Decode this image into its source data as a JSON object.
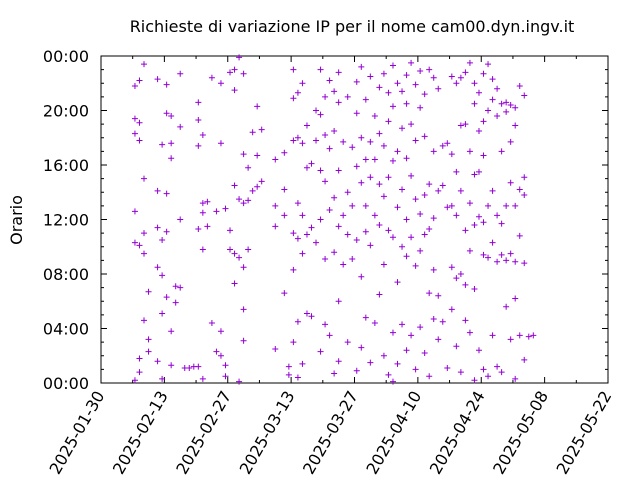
{
  "chart_data": {
    "type": "scatter",
    "title": "Richieste di variazione IP per il nome cam00.dyn.ingv.it",
    "xlabel": "",
    "ylabel": "Orario",
    "x_axis": {
      "type": "date",
      "range": [
        "2025-01-30",
        "2025-05-22"
      ],
      "tick_labels": [
        "2025-01-30",
        "2025-02-13",
        "2025-02-27",
        "2025-03-13",
        "2025-03-27",
        "2025-04-10",
        "2025-04-24",
        "2025-05-08",
        "2025-05-22"
      ]
    },
    "y_axis": {
      "unit": "hours",
      "range": [
        0,
        24
      ],
      "tick_labels": [
        "00:00",
        "04:00",
        "08:00",
        "12:00",
        "16:00",
        "20:00",
        "00:00"
      ],
      "tick_values": [
        0,
        4,
        8,
        12,
        16,
        20,
        24
      ]
    },
    "marker": "+",
    "color": "#9400d3",
    "grid": false,
    "points": [
      [
        "2025-02-06",
        21.8
      ],
      [
        "2025-02-06",
        19.4
      ],
      [
        "2025-02-06",
        18.3
      ],
      [
        "2025-02-06",
        12.6
      ],
      [
        "2025-02-06",
        10.3
      ],
      [
        "2025-02-06",
        0.2
      ],
      [
        "2025-02-07",
        22.2
      ],
      [
        "2025-02-07",
        19.1
      ],
      [
        "2025-02-07",
        17.8
      ],
      [
        "2025-02-07",
        10.1
      ],
      [
        "2025-02-07",
        1.8
      ],
      [
        "2025-02-07",
        0.8
      ],
      [
        "2025-02-08",
        23.4
      ],
      [
        "2025-02-08",
        15.0
      ],
      [
        "2025-02-08",
        11.0
      ],
      [
        "2025-02-08",
        9.5
      ],
      [
        "2025-02-08",
        4.6
      ],
      [
        "2025-02-09",
        6.7
      ],
      [
        "2025-02-09",
        3.2
      ],
      [
        "2025-02-09",
        2.3
      ],
      [
        "2025-02-11",
        22.3
      ],
      [
        "2025-02-11",
        14.1
      ],
      [
        "2025-02-11",
        11.4
      ],
      [
        "2025-02-11",
        8.5
      ],
      [
        "2025-02-11",
        1.6
      ],
      [
        "2025-02-12",
        17.5
      ],
      [
        "2025-02-12",
        10.5
      ],
      [
        "2025-02-12",
        7.9
      ],
      [
        "2025-02-12",
        5.1
      ],
      [
        "2025-02-12",
        0.3
      ],
      [
        "2025-02-13",
        21.9
      ],
      [
        "2025-02-13",
        19.8
      ],
      [
        "2025-02-13",
        13.9
      ],
      [
        "2025-02-13",
        11.1
      ],
      [
        "2025-02-13",
        6.3
      ],
      [
        "2025-02-14",
        19.6
      ],
      [
        "2025-02-14",
        17.6
      ],
      [
        "2025-02-14",
        16.5
      ],
      [
        "2025-02-14",
        3.8
      ],
      [
        "2025-02-14",
        1.3
      ],
      [
        "2025-02-15",
        7.1
      ],
      [
        "2025-02-15",
        5.9
      ],
      [
        "2025-02-16",
        22.7
      ],
      [
        "2025-02-16",
        18.8
      ],
      [
        "2025-02-16",
        12.0
      ],
      [
        "2025-02-16",
        7.0
      ],
      [
        "2025-02-17",
        1.1
      ],
      [
        "2025-02-18",
        1.1
      ],
      [
        "2025-02-19",
        1.2
      ],
      [
        "2025-02-20",
        20.6
      ],
      [
        "2025-02-20",
        19.3
      ],
      [
        "2025-02-20",
        17.4
      ],
      [
        "2025-02-20",
        11.3
      ],
      [
        "2025-02-20",
        1.2
      ],
      [
        "2025-02-21",
        18.2
      ],
      [
        "2025-02-21",
        13.2
      ],
      [
        "2025-02-21",
        12.5
      ],
      [
        "2025-02-21",
        9.8
      ],
      [
        "2025-02-21",
        0.3
      ],
      [
        "2025-02-22",
        13.3
      ],
      [
        "2025-02-22",
        11.5
      ],
      [
        "2025-02-23",
        22.4
      ],
      [
        "2025-02-23",
        4.4
      ],
      [
        "2025-02-24",
        12.6
      ],
      [
        "2025-02-24",
        2.3
      ],
      [
        "2025-02-25",
        22.0
      ],
      [
        "2025-02-25",
        17.6
      ],
      [
        "2025-02-25",
        3.8
      ],
      [
        "2025-02-25",
        2.0
      ],
      [
        "2025-02-26",
        12.8
      ],
      [
        "2025-02-26",
        1.3
      ],
      [
        "2025-02-26",
        0.5
      ],
      [
        "2025-02-27",
        22.8
      ],
      [
        "2025-02-27",
        11.2
      ],
      [
        "2025-02-27",
        9.8
      ],
      [
        "2025-02-28",
        23.0
      ],
      [
        "2025-02-28",
        21.5
      ],
      [
        "2025-02-28",
        14.5
      ],
      [
        "2025-02-28",
        9.5
      ],
      [
        "2025-02-28",
        7.3
      ],
      [
        "2025-03-01",
        23.9
      ],
      [
        "2025-03-01",
        13.5
      ],
      [
        "2025-03-01",
        9.2
      ],
      [
        "2025-03-01",
        0.1
      ],
      [
        "2025-03-02",
        22.7
      ],
      [
        "2025-03-02",
        16.8
      ],
      [
        "2025-03-02",
        13.2
      ],
      [
        "2025-03-02",
        8.5
      ],
      [
        "2025-03-02",
        5.4
      ],
      [
        "2025-03-02",
        3.1
      ],
      [
        "2025-03-03",
        15.8
      ],
      [
        "2025-03-03",
        13.4
      ],
      [
        "2025-03-03",
        9.8
      ],
      [
        "2025-03-04",
        18.4
      ],
      [
        "2025-03-04",
        14.1
      ],
      [
        "2025-03-05",
        20.3
      ],
      [
        "2025-03-05",
        16.7
      ],
      [
        "2025-03-05",
        14.4
      ],
      [
        "2025-03-06",
        18.6
      ],
      [
        "2025-03-06",
        14.8
      ],
      [
        "2025-03-09",
        16.4
      ],
      [
        "2025-03-09",
        13.0
      ],
      [
        "2025-03-09",
        11.5
      ],
      [
        "2025-03-09",
        2.5
      ],
      [
        "2025-03-11",
        16.9
      ],
      [
        "2025-03-11",
        14.2
      ],
      [
        "2025-03-11",
        12.3
      ],
      [
        "2025-03-11",
        6.6
      ],
      [
        "2025-03-12",
        1.2
      ],
      [
        "2025-03-12",
        0.6
      ],
      [
        "2025-03-13",
        23.0
      ],
      [
        "2025-03-13",
        20.9
      ],
      [
        "2025-03-13",
        17.8
      ],
      [
        "2025-03-13",
        11.0
      ],
      [
        "2025-03-13",
        8.3
      ],
      [
        "2025-03-13",
        3.0
      ],
      [
        "2025-03-14",
        21.3
      ],
      [
        "2025-03-14",
        18.0
      ],
      [
        "2025-03-14",
        13.2
      ],
      [
        "2025-03-14",
        10.6
      ],
      [
        "2025-03-14",
        4.5
      ],
      [
        "2025-03-14",
        0.4
      ],
      [
        "2025-03-15",
        22.0
      ],
      [
        "2025-03-15",
        17.6
      ],
      [
        "2025-03-15",
        12.3
      ],
      [
        "2025-03-15",
        9.5
      ],
      [
        "2025-03-15",
        1.4
      ],
      [
        "2025-03-16",
        18.9
      ],
      [
        "2025-03-16",
        15.8
      ],
      [
        "2025-03-16",
        10.9
      ],
      [
        "2025-03-16",
        5.1
      ],
      [
        "2025-03-17",
        16.1
      ],
      [
        "2025-03-17",
        11.4
      ],
      [
        "2025-03-17",
        4.9
      ],
      [
        "2025-03-18",
        20.0
      ],
      [
        "2025-03-18",
        17.8
      ],
      [
        "2025-03-18",
        10.3
      ],
      [
        "2025-03-19",
        23.0
      ],
      [
        "2025-03-19",
        19.7
      ],
      [
        "2025-03-19",
        15.6
      ],
      [
        "2025-03-19",
        12.0
      ],
      [
        "2025-03-19",
        2.3
      ],
      [
        "2025-03-20",
        21.0
      ],
      [
        "2025-03-20",
        18.2
      ],
      [
        "2025-03-20",
        14.8
      ],
      [
        "2025-03-20",
        9.1
      ],
      [
        "2025-03-20",
        4.3
      ],
      [
        "2025-03-21",
        22.2
      ],
      [
        "2025-03-21",
        17.2
      ],
      [
        "2025-03-21",
        12.7
      ],
      [
        "2025-03-21",
        3.5
      ],
      [
        "2025-03-22",
        21.4
      ],
      [
        "2025-03-22",
        18.5
      ],
      [
        "2025-03-22",
        13.6
      ],
      [
        "2025-03-22",
        9.6
      ],
      [
        "2025-03-22",
        0.7
      ],
      [
        "2025-03-23",
        22.8
      ],
      [
        "2025-03-23",
        20.6
      ],
      [
        "2025-03-23",
        15.6
      ],
      [
        "2025-03-23",
        11.5
      ],
      [
        "2025-03-23",
        6.0
      ],
      [
        "2025-03-23",
        1.6
      ],
      [
        "2025-03-24",
        17.7
      ],
      [
        "2025-03-24",
        12.3
      ],
      [
        "2025-03-24",
        8.7
      ],
      [
        "2025-03-25",
        21.0
      ],
      [
        "2025-03-25",
        14.0
      ],
      [
        "2025-03-25",
        10.9
      ],
      [
        "2025-03-25",
        3.0
      ],
      [
        "2025-03-26",
        17.3
      ],
      [
        "2025-03-26",
        13.0
      ],
      [
        "2025-03-26",
        9.1
      ],
      [
        "2025-03-27",
        22.1
      ],
      [
        "2025-03-27",
        19.8
      ],
      [
        "2025-03-27",
        15.9
      ],
      [
        "2025-03-27",
        10.5
      ],
      [
        "2025-03-27",
        0.9
      ],
      [
        "2025-03-28",
        23.2
      ],
      [
        "2025-03-28",
        18.0
      ],
      [
        "2025-03-28",
        14.7
      ],
      [
        "2025-03-28",
        7.8
      ],
      [
        "2025-03-28",
        2.6
      ],
      [
        "2025-03-29",
        20.8
      ],
      [
        "2025-03-29",
        16.4
      ],
      [
        "2025-03-29",
        13.0
      ],
      [
        "2025-03-29",
        11.1
      ],
      [
        "2025-03-29",
        4.8
      ],
      [
        "2025-03-30",
        22.5
      ],
      [
        "2025-03-30",
        17.7
      ],
      [
        "2025-03-30",
        15.1
      ],
      [
        "2025-03-30",
        10.1
      ],
      [
        "2025-03-30",
        1.5
      ],
      [
        "2025-03-31",
        19.6
      ],
      [
        "2025-03-31",
        16.4
      ],
      [
        "2025-03-31",
        12.3
      ],
      [
        "2025-03-31",
        4.4
      ],
      [
        "2025-04-01",
        21.7
      ],
      [
        "2025-04-01",
        18.3
      ],
      [
        "2025-04-01",
        14.6
      ],
      [
        "2025-04-01",
        11.6
      ],
      [
        "2025-04-01",
        6.5
      ],
      [
        "2025-04-02",
        22.7
      ],
      [
        "2025-04-02",
        17.4
      ],
      [
        "2025-04-02",
        13.7
      ],
      [
        "2025-04-02",
        8.7
      ],
      [
        "2025-04-02",
        2.0
      ],
      [
        "2025-04-03",
        21.3
      ],
      [
        "2025-04-03",
        19.2
      ],
      [
        "2025-04-03",
        15.1
      ],
      [
        "2025-04-03",
        11.2
      ],
      [
        "2025-04-03",
        0.6
      ],
      [
        "2025-04-04",
        23.3
      ],
      [
        "2025-04-04",
        20.3
      ],
      [
        "2025-04-04",
        16.3
      ],
      [
        "2025-04-04",
        10.7
      ],
      [
        "2025-04-04",
        3.7
      ],
      [
        "2025-04-04",
        0.1
      ],
      [
        "2025-04-05",
        22.0
      ],
      [
        "2025-04-05",
        17.0
      ],
      [
        "2025-04-05",
        12.9
      ],
      [
        "2025-04-05",
        7.4
      ],
      [
        "2025-04-05",
        1.4
      ],
      [
        "2025-04-06",
        21.4
      ],
      [
        "2025-04-06",
        18.7
      ],
      [
        "2025-04-06",
        14.2
      ],
      [
        "2025-04-06",
        10.0
      ],
      [
        "2025-04-06",
        4.3
      ],
      [
        "2025-04-07",
        22.6
      ],
      [
        "2025-04-07",
        20.5
      ],
      [
        "2025-04-07",
        16.5
      ],
      [
        "2025-04-07",
        12.0
      ],
      [
        "2025-04-07",
        9.3
      ],
      [
        "2025-04-07",
        2.4
      ],
      [
        "2025-04-08",
        23.5
      ],
      [
        "2025-04-08",
        19.0
      ],
      [
        "2025-04-08",
        15.2
      ],
      [
        "2025-04-08",
        10.7
      ],
      [
        "2025-04-08",
        3.5
      ],
      [
        "2025-04-09",
        21.9
      ],
      [
        "2025-04-09",
        17.8
      ],
      [
        "2025-04-09",
        13.5
      ],
      [
        "2025-04-09",
        8.6
      ],
      [
        "2025-04-09",
        1.0
      ],
      [
        "2025-04-10",
        22.9
      ],
      [
        "2025-04-10",
        20.2
      ],
      [
        "2025-04-10",
        12.4
      ],
      [
        "2025-04-10",
        9.7
      ],
      [
        "2025-04-10",
        4.1
      ],
      [
        "2025-04-11",
        21.2
      ],
      [
        "2025-04-11",
        18.1
      ],
      [
        "2025-04-11",
        13.8
      ],
      [
        "2025-04-11",
        10.9
      ],
      [
        "2025-04-11",
        2.2
      ],
      [
        "2025-04-12",
        23.0
      ],
      [
        "2025-04-12",
        14.6
      ],
      [
        "2025-04-12",
        11.3
      ],
      [
        "2025-04-12",
        6.6
      ],
      [
        "2025-04-12",
        0.5
      ],
      [
        "2025-04-13",
        22.4
      ],
      [
        "2025-04-13",
        17.0
      ],
      [
        "2025-04-13",
        12.1
      ],
      [
        "2025-04-13",
        8.3
      ],
      [
        "2025-04-13",
        4.7
      ],
      [
        "2025-04-14",
        21.6
      ],
      [
        "2025-04-14",
        14.1
      ],
      [
        "2025-04-14",
        6.4
      ],
      [
        "2025-04-14",
        3.2
      ],
      [
        "2025-04-15",
        17.4
      ],
      [
        "2025-04-15",
        14.5
      ],
      [
        "2025-04-15",
        4.5
      ],
      [
        "2025-04-16",
        17.6
      ],
      [
        "2025-04-16",
        12.9
      ],
      [
        "2025-04-16",
        1.1
      ],
      [
        "2025-04-17",
        22.5
      ],
      [
        "2025-04-17",
        16.8
      ],
      [
        "2025-04-17",
        13.0
      ],
      [
        "2025-04-17",
        8.5
      ],
      [
        "2025-04-17",
        5.4
      ],
      [
        "2025-04-18",
        22.0
      ],
      [
        "2025-04-18",
        15.5
      ],
      [
        "2025-04-18",
        12.3
      ],
      [
        "2025-04-18",
        7.7
      ],
      [
        "2025-04-18",
        2.7
      ],
      [
        "2025-04-19",
        22.4
      ],
      [
        "2025-04-19",
        18.9
      ],
      [
        "2025-04-19",
        14.1
      ],
      [
        "2025-04-19",
        8.0
      ],
      [
        "2025-04-19",
        0.8
      ],
      [
        "2025-04-20",
        22.8
      ],
      [
        "2025-04-20",
        19.0
      ],
      [
        "2025-04-20",
        11.2
      ],
      [
        "2025-04-20",
        7.2
      ],
      [
        "2025-04-20",
        4.6
      ],
      [
        "2025-04-21",
        23.5
      ],
      [
        "2025-04-21",
        17.0
      ],
      [
        "2025-04-21",
        13.2
      ],
      [
        "2025-04-21",
        9.7
      ],
      [
        "2025-04-21",
        3.7
      ],
      [
        "2025-04-22",
        22.0
      ],
      [
        "2025-04-22",
        20.5
      ],
      [
        "2025-04-22",
        15.3
      ],
      [
        "2025-04-22",
        11.6
      ],
      [
        "2025-04-22",
        6.9
      ],
      [
        "2025-04-22",
        0.2
      ],
      [
        "2025-04-23",
        21.3
      ],
      [
        "2025-04-23",
        18.5
      ],
      [
        "2025-04-23",
        15.5
      ],
      [
        "2025-04-23",
        12.2
      ],
      [
        "2025-04-23",
        2.4
      ],
      [
        "2025-04-24",
        22.7
      ],
      [
        "2025-04-24",
        19.2
      ],
      [
        "2025-04-24",
        16.7
      ],
      [
        "2025-04-24",
        11.8
      ],
      [
        "2025-04-24",
        9.4
      ],
      [
        "2025-04-24",
        1.0
      ],
      [
        "2025-04-25",
        23.4
      ],
      [
        "2025-04-25",
        20.0
      ],
      [
        "2025-04-25",
        13.0
      ],
      [
        "2025-04-25",
        9.2
      ],
      [
        "2025-04-25",
        0.5
      ],
      [
        "2025-04-26",
        22.3
      ],
      [
        "2025-04-26",
        20.8
      ],
      [
        "2025-04-26",
        14.1
      ],
      [
        "2025-04-26",
        10.3
      ],
      [
        "2025-04-26",
        3.5
      ],
      [
        "2025-04-27",
        21.6
      ],
      [
        "2025-04-27",
        19.6
      ],
      [
        "2025-04-27",
        12.3
      ],
      [
        "2025-04-27",
        8.9
      ],
      [
        "2025-04-27",
        1.2
      ],
      [
        "2025-04-28",
        20.5
      ],
      [
        "2025-04-28",
        17.0
      ],
      [
        "2025-04-28",
        11.7
      ],
      [
        "2025-04-28",
        9.4
      ],
      [
        "2025-04-28",
        0.8
      ],
      [
        "2025-04-29",
        20.6
      ],
      [
        "2025-04-29",
        19.9
      ],
      [
        "2025-04-29",
        13.0
      ],
      [
        "2025-04-29",
        9.0
      ],
      [
        "2025-04-29",
        5.6
      ],
      [
        "2025-04-30",
        20.4
      ],
      [
        "2025-04-30",
        17.7
      ],
      [
        "2025-04-30",
        14.7
      ],
      [
        "2025-04-30",
        9.5
      ],
      [
        "2025-04-30",
        3.2
      ],
      [
        "2025-05-01",
        20.2
      ],
      [
        "2025-05-01",
        18.9
      ],
      [
        "2025-05-01",
        13.0
      ],
      [
        "2025-05-01",
        8.9
      ],
      [
        "2025-05-01",
        6.2
      ],
      [
        "2025-05-01",
        0.3
      ],
      [
        "2025-05-02",
        21.8
      ],
      [
        "2025-05-02",
        14.2
      ],
      [
        "2025-05-02",
        10.8
      ],
      [
        "2025-05-02",
        3.5
      ],
      [
        "2025-05-03",
        21.1
      ],
      [
        "2025-05-03",
        15.1
      ],
      [
        "2025-05-03",
        13.8
      ],
      [
        "2025-05-03",
        8.8
      ],
      [
        "2025-05-03",
        1.7
      ],
      [
        "2025-05-04",
        3.4
      ],
      [
        "2025-05-05",
        3.5
      ]
    ]
  }
}
